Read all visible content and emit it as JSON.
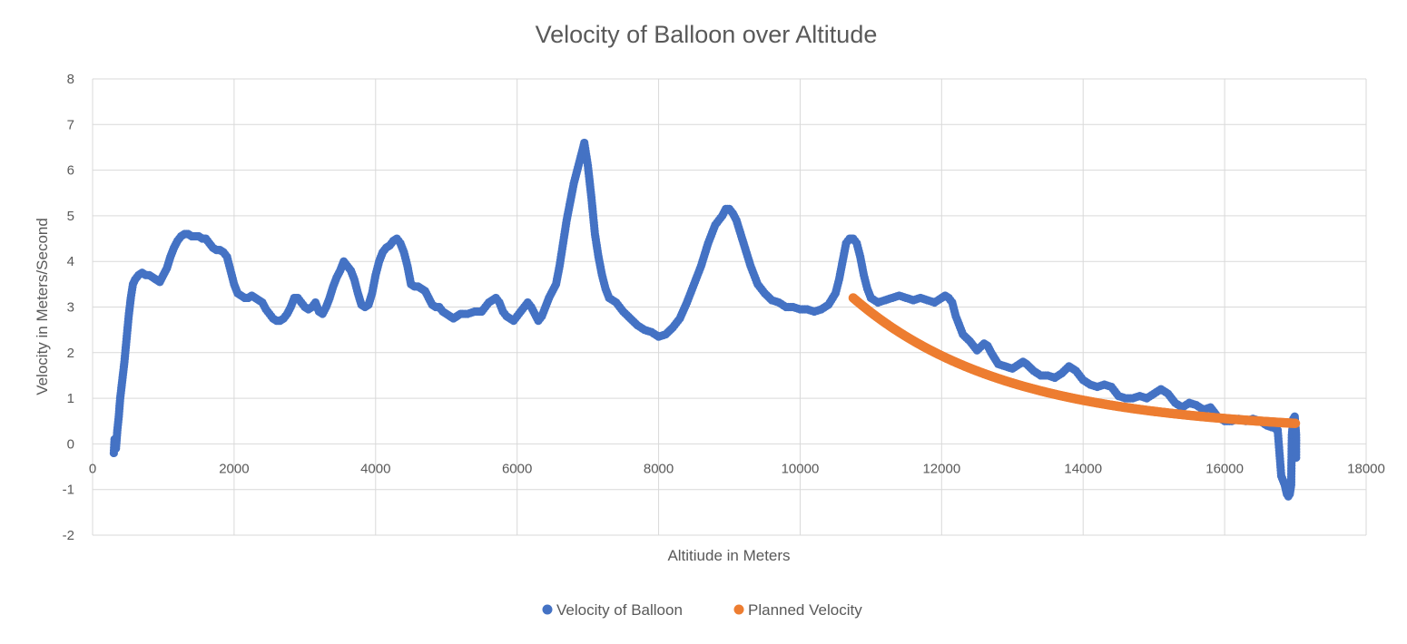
{
  "chart_data": {
    "type": "scatter",
    "title": "Velocity of Balloon over Altitude",
    "xlabel": "Altitiude in Meters",
    "ylabel": "Velocity in Meters/Second",
    "xlim": [
      0,
      18000
    ],
    "ylim": [
      -2,
      8
    ],
    "x_ticks": [
      0,
      2000,
      4000,
      6000,
      8000,
      10000,
      12000,
      14000,
      16000,
      18000
    ],
    "y_ticks": [
      -2,
      -1,
      0,
      1,
      2,
      3,
      4,
      5,
      6,
      7,
      8
    ],
    "grid": true,
    "legend_position": "bottom",
    "series": [
      {
        "name": "Velocity of Balloon",
        "color": "#4472c4",
        "points": [
          [
            300,
            -0.2
          ],
          [
            310,
            0.1
          ],
          [
            330,
            -0.1
          ],
          [
            350,
            0.3
          ],
          [
            370,
            0.6
          ],
          [
            390,
            1.0
          ],
          [
            420,
            1.4
          ],
          [
            450,
            1.8
          ],
          [
            480,
            2.3
          ],
          [
            510,
            2.8
          ],
          [
            540,
            3.2
          ],
          [
            570,
            3.5
          ],
          [
            600,
            3.6
          ],
          [
            650,
            3.7
          ],
          [
            700,
            3.75
          ],
          [
            750,
            3.7
          ],
          [
            800,
            3.7
          ],
          [
            850,
            3.65
          ],
          [
            900,
            3.6
          ],
          [
            950,
            3.55
          ],
          [
            1000,
            3.7
          ],
          [
            1050,
            3.85
          ],
          [
            1100,
            4.1
          ],
          [
            1150,
            4.3
          ],
          [
            1200,
            4.45
          ],
          [
            1250,
            4.55
          ],
          [
            1300,
            4.6
          ],
          [
            1350,
            4.6
          ],
          [
            1400,
            4.55
          ],
          [
            1450,
            4.55
          ],
          [
            1500,
            4.55
          ],
          [
            1550,
            4.5
          ],
          [
            1600,
            4.5
          ],
          [
            1650,
            4.4
          ],
          [
            1700,
            4.3
          ],
          [
            1750,
            4.25
          ],
          [
            1800,
            4.25
          ],
          [
            1850,
            4.2
          ],
          [
            1900,
            4.1
          ],
          [
            1950,
            3.8
          ],
          [
            2000,
            3.5
          ],
          [
            2050,
            3.3
          ],
          [
            2100,
            3.25
          ],
          [
            2150,
            3.2
          ],
          [
            2200,
            3.2
          ],
          [
            2250,
            3.25
          ],
          [
            2300,
            3.2
          ],
          [
            2350,
            3.15
          ],
          [
            2400,
            3.1
          ],
          [
            2450,
            2.95
          ],
          [
            2500,
            2.85
          ],
          [
            2550,
            2.75
          ],
          [
            2600,
            2.7
          ],
          [
            2650,
            2.7
          ],
          [
            2700,
            2.75
          ],
          [
            2750,
            2.85
          ],
          [
            2800,
            3.0
          ],
          [
            2850,
            3.2
          ],
          [
            2900,
            3.2
          ],
          [
            2950,
            3.1
          ],
          [
            3000,
            3.0
          ],
          [
            3050,
            2.95
          ],
          [
            3100,
            3.0
          ],
          [
            3150,
            3.1
          ],
          [
            3200,
            2.9
          ],
          [
            3250,
            2.85
          ],
          [
            3300,
            3.0
          ],
          [
            3350,
            3.2
          ],
          [
            3400,
            3.45
          ],
          [
            3450,
            3.65
          ],
          [
            3500,
            3.8
          ],
          [
            3550,
            4.0
          ],
          [
            3600,
            3.9
          ],
          [
            3650,
            3.8
          ],
          [
            3700,
            3.6
          ],
          [
            3750,
            3.3
          ],
          [
            3800,
            3.05
          ],
          [
            3850,
            3.0
          ],
          [
            3900,
            3.05
          ],
          [
            3950,
            3.3
          ],
          [
            4000,
            3.7
          ],
          [
            4050,
            4.0
          ],
          [
            4100,
            4.2
          ],
          [
            4150,
            4.3
          ],
          [
            4200,
            4.35
          ],
          [
            4250,
            4.45
          ],
          [
            4300,
            4.5
          ],
          [
            4350,
            4.4
          ],
          [
            4400,
            4.2
          ],
          [
            4450,
            3.9
          ],
          [
            4500,
            3.5
          ],
          [
            4550,
            3.45
          ],
          [
            4600,
            3.45
          ],
          [
            4650,
            3.4
          ],
          [
            4700,
            3.35
          ],
          [
            4750,
            3.2
          ],
          [
            4800,
            3.05
          ],
          [
            4850,
            3.0
          ],
          [
            4900,
            3.0
          ],
          [
            4950,
            2.9
          ],
          [
            5000,
            2.85
          ],
          [
            5050,
            2.8
          ],
          [
            5100,
            2.75
          ],
          [
            5150,
            2.8
          ],
          [
            5200,
            2.85
          ],
          [
            5300,
            2.85
          ],
          [
            5400,
            2.9
          ],
          [
            5500,
            2.9
          ],
          [
            5600,
            3.1
          ],
          [
            5650,
            3.15
          ],
          [
            5700,
            3.2
          ],
          [
            5750,
            3.1
          ],
          [
            5800,
            2.9
          ],
          [
            5850,
            2.8
          ],
          [
            5900,
            2.75
          ],
          [
            5950,
            2.7
          ],
          [
            6000,
            2.8
          ],
          [
            6050,
            2.9
          ],
          [
            6100,
            3.0
          ],
          [
            6150,
            3.1
          ],
          [
            6200,
            3.0
          ],
          [
            6250,
            2.85
          ],
          [
            6300,
            2.7
          ],
          [
            6350,
            2.8
          ],
          [
            6400,
            3.0
          ],
          [
            6450,
            3.2
          ],
          [
            6500,
            3.35
          ],
          [
            6550,
            3.5
          ],
          [
            6600,
            3.9
          ],
          [
            6650,
            4.4
          ],
          [
            6700,
            4.9
          ],
          [
            6750,
            5.3
          ],
          [
            6800,
            5.7
          ],
          [
            6850,
            6.0
          ],
          [
            6900,
            6.3
          ],
          [
            6950,
            6.6
          ],
          [
            7000,
            6.1
          ],
          [
            7050,
            5.4
          ],
          [
            7100,
            4.6
          ],
          [
            7150,
            4.1
          ],
          [
            7200,
            3.7
          ],
          [
            7250,
            3.4
          ],
          [
            7300,
            3.2
          ],
          [
            7400,
            3.1
          ],
          [
            7500,
            2.9
          ],
          [
            7600,
            2.75
          ],
          [
            7700,
            2.6
          ],
          [
            7800,
            2.5
          ],
          [
            7900,
            2.45
          ],
          [
            8000,
            2.35
          ],
          [
            8100,
            2.4
          ],
          [
            8200,
            2.55
          ],
          [
            8300,
            2.75
          ],
          [
            8400,
            3.1
          ],
          [
            8500,
            3.5
          ],
          [
            8600,
            3.9
          ],
          [
            8700,
            4.4
          ],
          [
            8800,
            4.8
          ],
          [
            8900,
            5.0
          ],
          [
            8950,
            5.15
          ],
          [
            9000,
            5.15
          ],
          [
            9050,
            5.05
          ],
          [
            9100,
            4.9
          ],
          [
            9200,
            4.4
          ],
          [
            9300,
            3.9
          ],
          [
            9400,
            3.5
          ],
          [
            9500,
            3.3
          ],
          [
            9600,
            3.15
          ],
          [
            9700,
            3.1
          ],
          [
            9800,
            3.0
          ],
          [
            9900,
            3.0
          ],
          [
            10000,
            2.95
          ],
          [
            10100,
            2.95
          ],
          [
            10200,
            2.9
          ],
          [
            10300,
            2.95
          ],
          [
            10400,
            3.05
          ],
          [
            10500,
            3.3
          ],
          [
            10550,
            3.6
          ],
          [
            10600,
            4.0
          ],
          [
            10650,
            4.4
          ],
          [
            10700,
            4.5
          ],
          [
            10750,
            4.5
          ],
          [
            10800,
            4.4
          ],
          [
            10850,
            4.1
          ],
          [
            10900,
            3.7
          ],
          [
            10950,
            3.4
          ],
          [
            11000,
            3.2
          ],
          [
            11100,
            3.1
          ],
          [
            11200,
            3.15
          ],
          [
            11300,
            3.2
          ],
          [
            11400,
            3.25
          ],
          [
            11500,
            3.2
          ],
          [
            11600,
            3.15
          ],
          [
            11700,
            3.2
          ],
          [
            11800,
            3.15
          ],
          [
            11900,
            3.1
          ],
          [
            12000,
            3.2
          ],
          [
            12050,
            3.25
          ],
          [
            12100,
            3.2
          ],
          [
            12150,
            3.1
          ],
          [
            12200,
            2.8
          ],
          [
            12300,
            2.4
          ],
          [
            12400,
            2.25
          ],
          [
            12500,
            2.05
          ],
          [
            12600,
            2.2
          ],
          [
            12650,
            2.15
          ],
          [
            12700,
            2.0
          ],
          [
            12800,
            1.75
          ],
          [
            12900,
            1.7
          ],
          [
            13000,
            1.65
          ],
          [
            13100,
            1.75
          ],
          [
            13150,
            1.8
          ],
          [
            13200,
            1.75
          ],
          [
            13300,
            1.6
          ],
          [
            13400,
            1.5
          ],
          [
            13500,
            1.5
          ],
          [
            13600,
            1.45
          ],
          [
            13700,
            1.55
          ],
          [
            13800,
            1.7
          ],
          [
            13850,
            1.65
          ],
          [
            13900,
            1.6
          ],
          [
            14000,
            1.4
          ],
          [
            14100,
            1.3
          ],
          [
            14200,
            1.25
          ],
          [
            14300,
            1.3
          ],
          [
            14400,
            1.25
          ],
          [
            14500,
            1.05
          ],
          [
            14600,
            1.0
          ],
          [
            14700,
            1.0
          ],
          [
            14800,
            1.05
          ],
          [
            14900,
            1.0
          ],
          [
            15000,
            1.1
          ],
          [
            15100,
            1.2
          ],
          [
            15200,
            1.1
          ],
          [
            15300,
            0.9
          ],
          [
            15400,
            0.8
          ],
          [
            15500,
            0.9
          ],
          [
            15600,
            0.85
          ],
          [
            15700,
            0.75
          ],
          [
            15800,
            0.8
          ],
          [
            15900,
            0.6
          ],
          [
            16000,
            0.5
          ],
          [
            16100,
            0.5
          ],
          [
            16200,
            0.55
          ],
          [
            16300,
            0.5
          ],
          [
            16400,
            0.55
          ],
          [
            16500,
            0.5
          ],
          [
            16600,
            0.4
          ],
          [
            16700,
            0.35
          ],
          [
            16750,
            0.3
          ],
          [
            16800,
            -0.7
          ],
          [
            16850,
            -0.9
          ],
          [
            16880,
            -1.1
          ],
          [
            16900,
            -1.15
          ],
          [
            16920,
            -1.1
          ],
          [
            16940,
            -0.9
          ],
          [
            16950,
            0.2
          ],
          [
            16970,
            0.55
          ],
          [
            16990,
            0.6
          ],
          [
            17000,
            0.4
          ],
          [
            17010,
            0.2
          ],
          [
            17010,
            -0.3
          ]
        ]
      },
      {
        "name": "Planned Velocity",
        "color": "#ed7d31",
        "x_range": [
          10750,
          17000
        ],
        "y_start": 3.2,
        "y_end": 0.45,
        "description": "smooth decreasing curve"
      }
    ]
  }
}
